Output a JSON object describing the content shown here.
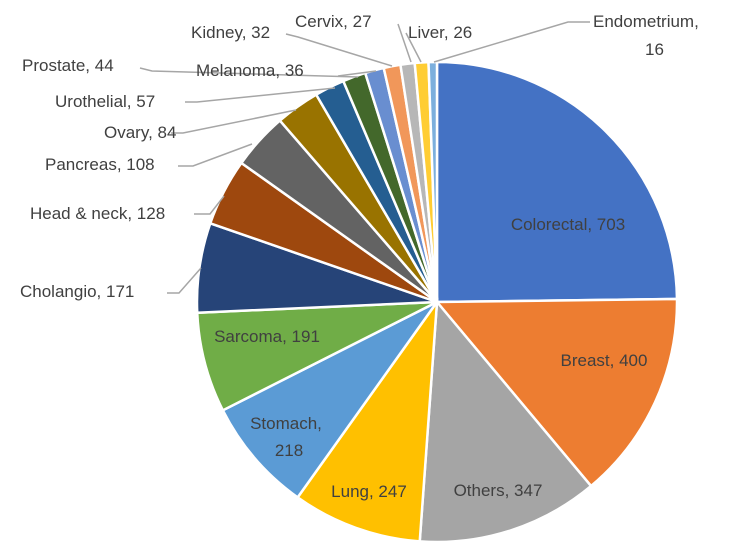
{
  "chart_data": {
    "type": "pie",
    "title": "",
    "start_angle_deg": 0,
    "direction": "clockwise",
    "slices": [
      {
        "label": "Colorectal, 703",
        "name": "Colorectal",
        "value": 703,
        "color": "#4472C4"
      },
      {
        "label": "Breast, 400",
        "name": "Breast",
        "value": 400,
        "color": "#ED7D31"
      },
      {
        "label": "Others, 347",
        "name": "Others",
        "value": 347,
        "color": "#A5A5A5"
      },
      {
        "label": "Lung, 247",
        "name": "Lung",
        "value": 247,
        "color": "#FFC000"
      },
      {
        "label": "Stomach, 218",
        "name": "Stomach",
        "value": 218,
        "color": "#5B9BD5"
      },
      {
        "label": "Sarcoma, 191",
        "name": "Sarcoma",
        "value": 191,
        "color": "#70AD47"
      },
      {
        "label": "Cholangio, 171",
        "name": "Cholangio",
        "value": 171,
        "color": "#264478"
      },
      {
        "label": "Head & neck, 128",
        "name": "Head & neck",
        "value": 128,
        "color": "#9E480E"
      },
      {
        "label": "Pancreas, 108",
        "name": "Pancreas",
        "value": 108,
        "color": "#636363"
      },
      {
        "label": "Ovary, 84",
        "name": "Ovary",
        "value": 84,
        "color": "#997300"
      },
      {
        "label": "Urothelial, 57",
        "name": "Urothelial",
        "value": 57,
        "color": "#255E91"
      },
      {
        "label": "Prostate, 44",
        "name": "Prostate",
        "value": 44,
        "color": "#43682B"
      },
      {
        "label": "Melanoma, 36",
        "name": "Melanoma",
        "value": 36,
        "color": "#698ED0"
      },
      {
        "label": "Kidney, 32",
        "name": "Kidney",
        "value": 32,
        "color": "#F1975A"
      },
      {
        "label": "Cervix, 27",
        "name": "Cervix",
        "value": 27,
        "color": "#B7B7B7"
      },
      {
        "label": "Liver, 26",
        "name": "Liver",
        "value": 26,
        "color": "#FFCD33"
      },
      {
        "label": "Endometrium, 16",
        "name": "Endometrium",
        "value": 16,
        "color": "#7CAFDD"
      }
    ],
    "legend": "none"
  }
}
